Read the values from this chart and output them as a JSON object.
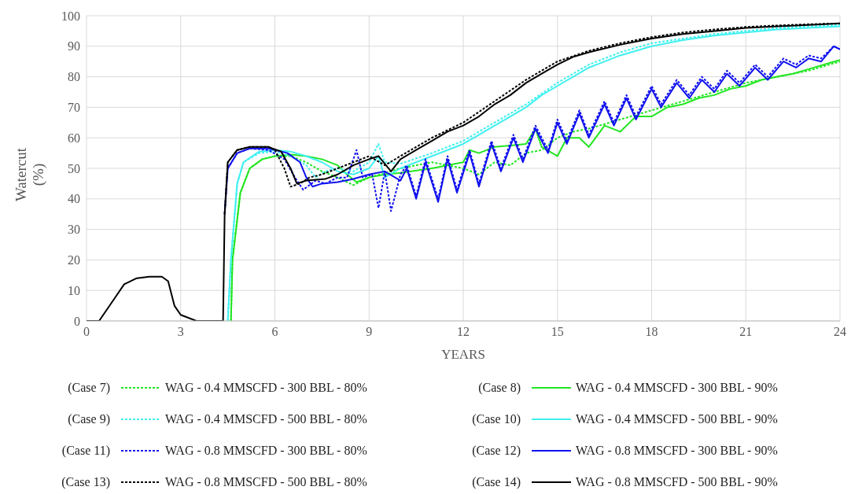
{
  "chart_data": {
    "type": "line",
    "xlabel": "YEARS",
    "ylabel": "Watercut (%)",
    "xlim": [
      0,
      24
    ],
    "xticks": [
      0,
      3,
      6,
      9,
      12,
      15,
      18,
      21,
      24
    ],
    "ylim": [
      0,
      100
    ],
    "yticks": [
      0,
      10,
      20,
      30,
      40,
      50,
      60,
      70,
      80,
      90,
      100
    ],
    "grid": true,
    "legend": "bottom",
    "marker": "none",
    "annotations": [
      "(Case 7)",
      "(Case 8)",
      "(Case 9)",
      "(Case 10)",
      "(Case 11)",
      "(Case 12)",
      "(Case 13)",
      "(Case 14)"
    ],
    "series": [
      {
        "name": "WAG - 0.4 MMSCFD - 300 BBL - 80%",
        "color": "#22e622",
        "line_style": "dotted",
        "x": [
          4.6,
          4.65,
          4.9,
          5.2,
          5.6,
          6.0,
          6.5,
          7.0,
          7.5,
          8.0,
          8.5,
          9.0,
          10.0,
          11.0,
          12.0,
          12.5,
          13.0,
          13.5,
          14.0,
          14.5,
          15.0,
          15.5,
          16.0,
          17.0,
          18.0,
          19.0,
          20.0,
          21.0,
          22.0,
          23.0,
          24.0
        ],
        "values": [
          0,
          20,
          42,
          50,
          53,
          54,
          54,
          52,
          49,
          47,
          44.5,
          47,
          50,
          52,
          50,
          48,
          52,
          51,
          55,
          56,
          60,
          62,
          63,
          66,
          69,
          72,
          75,
          78,
          80,
          82,
          85
        ]
      },
      {
        "name": "WAG - 0.4 MMSCFD - 300 BBL - 90%",
        "color": "#22e622",
        "line_style": "solid",
        "x": [
          4.6,
          4.65,
          4.9,
          5.2,
          5.6,
          6.0,
          6.5,
          7.0,
          7.5,
          8.0,
          8.3,
          8.6,
          9.0,
          9.5,
          10.0,
          11.0,
          12.0,
          12.2,
          12.5,
          13.0,
          13.5,
          14.0,
          14.3,
          14.5,
          15.0,
          15.3,
          15.7,
          16.0,
          16.5,
          17.0,
          17.5,
          18.0,
          18.5,
          19.0,
          19.5,
          20.0,
          20.5,
          21.0,
          21.5,
          22.0,
          22.5,
          23.0,
          23.5,
          24.0
        ],
        "values": [
          0,
          20,
          42,
          50,
          53,
          54,
          54.5,
          54,
          53,
          51,
          48,
          45.5,
          47,
          48,
          48.5,
          50,
          52,
          56,
          55,
          57,
          57.5,
          58,
          63,
          57,
          54,
          60,
          60,
          57,
          64,
          62,
          67,
          67,
          70,
          71,
          73,
          74,
          76,
          77,
          79,
          80,
          81,
          82.5,
          84,
          85.5
        ]
      },
      {
        "name": "WAG - 0.4 MMSCFD - 500 BBL - 80%",
        "color": "#40f0f0",
        "line_style": "dotted",
        "x": [
          4.5,
          4.6,
          4.8,
          5.0,
          5.5,
          6.0,
          6.5,
          7.0,
          7.3,
          7.6,
          8.0,
          8.5,
          9.0,
          9.3,
          9.5,
          10.0,
          11.0,
          12.0,
          13.0,
          14.0,
          15.0,
          16.0,
          17.0,
          18.0,
          20.0,
          22.0,
          24.0
        ],
        "values": [
          0,
          20,
          45,
          52,
          55,
          55.5,
          54,
          51,
          47,
          49,
          50,
          49,
          52,
          58,
          52,
          51.5,
          55,
          59,
          65,
          71,
          78,
          84,
          88,
          91,
          94,
          96,
          97
        ]
      },
      {
        "name": "WAG - 0.4 MMSCFD - 500 BBL - 90%",
        "color": "#40f0f0",
        "line_style": "solid",
        "x": [
          4.5,
          4.6,
          4.8,
          5.0,
          5.5,
          6.0,
          6.5,
          7.0,
          7.5,
          8.0,
          8.5,
          9.0,
          9.3,
          9.5,
          10.0,
          10.5,
          11.0,
          11.5,
          12.0,
          12.5,
          13.0,
          13.5,
          14.0,
          14.5,
          15.0,
          15.5,
          16.0,
          17.0,
          18.0,
          19.0,
          20.0,
          21.0,
          22.0,
          23.0,
          24.0
        ],
        "values": [
          0,
          20,
          45,
          52,
          55.5,
          56,
          55.5,
          54,
          52,
          49,
          48,
          50,
          54,
          47,
          50,
          52,
          54,
          56,
          58,
          61,
          64,
          67,
          70,
          74,
          77,
          80,
          83,
          87,
          90,
          92,
          93.5,
          94.5,
          95.5,
          96,
          96.5
        ]
      },
      {
        "name": "WAG - 0.8 MMSCFD - 300 BBL - 80%",
        "color": "#1010f0",
        "line_style": "dotted",
        "x": [
          4.5,
          4.8,
          5.2,
          5.8,
          6.3,
          6.7,
          6.9,
          7.3,
          7.6,
          8.0,
          8.3,
          8.6,
          8.8,
          9.1,
          9.3,
          9.5,
          9.7,
          10.0,
          10.2,
          10.5,
          10.8,
          11.2,
          11.5,
          11.8,
          12.2,
          12.5,
          12.9,
          13.2,
          13.6,
          13.9,
          14.3,
          14.7,
          15.0,
          15.3,
          15.7,
          16.0,
          16.5,
          16.8,
          17.2,
          17.5,
          18.0,
          18.3,
          18.8,
          19.2,
          19.6,
          20.0,
          20.4,
          20.8,
          21.3,
          21.7,
          22.2,
          22.6,
          23.0,
          23.4,
          23.8,
          24.0
        ],
        "values": [
          50,
          55,
          56.5,
          56,
          53,
          46,
          43,
          46,
          45,
          47,
          47,
          56,
          47,
          48,
          37,
          49,
          36,
          48,
          51,
          41,
          53,
          40,
          54,
          43,
          56,
          45,
          59,
          50,
          61,
          53,
          64,
          56,
          66,
          59,
          69,
          61,
          72,
          65,
          74,
          67,
          77,
          71,
          79,
          74,
          80,
          76,
          82,
          78,
          84,
          80,
          86,
          84,
          87,
          86,
          90,
          89
        ]
      },
      {
        "name": "WAG - 0.8 MMSCFD - 300 BBL - 90%",
        "color": "#1010f0",
        "line_style": "solid",
        "x": [
          4.4,
          4.5,
          4.8,
          5.2,
          5.8,
          6.4,
          6.8,
          7.0,
          7.2,
          7.5,
          8.0,
          8.5,
          9.0,
          9.5,
          10.0,
          10.2,
          10.5,
          10.8,
          11.2,
          11.5,
          11.8,
          12.2,
          12.5,
          12.9,
          13.2,
          13.6,
          13.9,
          14.3,
          14.7,
          15.0,
          15.3,
          15.7,
          16.0,
          16.5,
          16.8,
          17.2,
          17.5,
          18.0,
          18.3,
          18.8,
          19.2,
          19.6,
          20.0,
          20.4,
          20.8,
          21.3,
          21.7,
          22.2,
          22.6,
          23.0,
          23.4,
          23.8,
          24.0
        ],
        "values": [
          35,
          50,
          55,
          56.5,
          56.5,
          55,
          52,
          47,
          44,
          45,
          45.5,
          46.5,
          48,
          49,
          46,
          50,
          40,
          52,
          39,
          53,
          42,
          55,
          44,
          58,
          49,
          60,
          52,
          63,
          55,
          65,
          58,
          68,
          60,
          71,
          64,
          73,
          66,
          76,
          70,
          78,
          73,
          79,
          75,
          81,
          77,
          83,
          79,
          85,
          83,
          86,
          85,
          90,
          89
        ]
      },
      {
        "name": "WAG - 0.8 MMSCFD - 500 BBL - 80%",
        "color": "#000000",
        "line_style": "dotted",
        "x": [
          4.4,
          4.5,
          4.8,
          5.2,
          5.8,
          6.0,
          6.3,
          6.5,
          6.8,
          7.1,
          7.5,
          8.0,
          8.5,
          9.0,
          9.5,
          10.0,
          11.0,
          12.0,
          13.0,
          14.0,
          15.0,
          16.0,
          17.0,
          18.0,
          19.0,
          20.0,
          21.0,
          22.0,
          23.0,
          24.0
        ],
        "values": [
          35,
          52,
          56,
          57,
          57,
          56,
          50,
          44,
          45,
          47,
          48,
          50,
          52,
          54,
          51,
          54,
          60,
          65,
          72,
          79,
          85,
          88.5,
          91,
          93,
          94.5,
          95.5,
          96.3,
          96.8,
          97.2,
          97.5
        ]
      },
      {
        "name": "WAG - 0.8 MMSCFD - 500 BBL - 90%",
        "color": "#000000",
        "line_style": "solid",
        "x": [
          0,
          0.4,
          0.8,
          1.2,
          1.6,
          2.0,
          2.4,
          2.6,
          2.8,
          3.0,
          3.5,
          4.0,
          4.35,
          4.4,
          4.5,
          4.8,
          5.2,
          5.8,
          6.2,
          6.5,
          6.7,
          7.0,
          7.6,
          8.0,
          8.5,
          9.0,
          9.3,
          9.7,
          10.0,
          10.5,
          11.0,
          11.5,
          12.0,
          12.5,
          13.0,
          13.5,
          14.0,
          14.5,
          15.0,
          15.5,
          16.0,
          17.0,
          18.0,
          19.0,
          20.0,
          21.0,
          22.0,
          23.0,
          24.0
        ],
        "values": [
          0,
          0,
          6,
          12,
          14,
          14.5,
          14.5,
          13,
          5,
          2,
          0,
          0,
          0,
          35,
          52,
          56,
          57,
          57,
          55.5,
          50,
          45,
          46,
          46.5,
          48,
          51,
          53,
          54,
          49,
          53,
          56,
          59,
          62,
          64,
          67,
          71,
          74,
          78,
          81,
          84,
          86.5,
          88,
          90.5,
          92.5,
          94,
          95,
          96,
          96.5,
          97,
          97.5
        ]
      }
    ]
  }
}
